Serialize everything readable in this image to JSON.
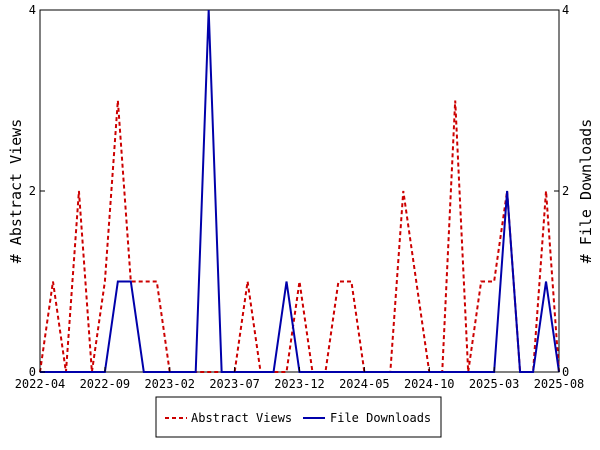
{
  "chart_data": {
    "type": "line",
    "ylabel_left": "# Abstract Views",
    "ylabel_right": "# File Downloads",
    "ylim_left": [
      0,
      4
    ],
    "ylim_right": [
      0,
      4
    ],
    "yticks_left": [
      "0",
      "2",
      "4"
    ],
    "yticks_right": [
      "0",
      "2",
      "4"
    ],
    "xticks": [
      {
        "label": "2022-04",
        "index": 0
      },
      {
        "label": "2022-09",
        "index": 5
      },
      {
        "label": "2023-02",
        "index": 10
      },
      {
        "label": "2023-07",
        "index": 15
      },
      {
        "label": "2023-12",
        "index": 20
      },
      {
        "label": "2024-05",
        "index": 25
      },
      {
        "label": "2024-10",
        "index": 30
      },
      {
        "label": "2025-03",
        "index": 35
      },
      {
        "label": "2025-08",
        "index": 40
      }
    ],
    "x": [
      "2022-04",
      "2022-05",
      "2022-06",
      "2022-07",
      "2022-08",
      "2022-09",
      "2022-10",
      "2022-11",
      "2022-12",
      "2023-01",
      "2023-02",
      "2023-03",
      "2023-04",
      "2023-05",
      "2023-06",
      "2023-07",
      "2023-08",
      "2023-09",
      "2023-10",
      "2023-11",
      "2023-12",
      "2024-01",
      "2024-02",
      "2024-03",
      "2024-04",
      "2024-05",
      "2024-06",
      "2024-07",
      "2024-08",
      "2024-09",
      "2024-10",
      "2024-11",
      "2024-12",
      "2025-01",
      "2025-02",
      "2025-03",
      "2025-04",
      "2025-05",
      "2025-06",
      "2025-07",
      "2025-08"
    ],
    "series": [
      {
        "name": "Abstract Views",
        "color": "#cc0000",
        "dash": "dashed",
        "axis": "left",
        "values": [
          0,
          1,
          0,
          2,
          0,
          1,
          3,
          1,
          1,
          1,
          0,
          0,
          0,
          0,
          0,
          0,
          1,
          0,
          0,
          0,
          1,
          0,
          0,
          1,
          1,
          0,
          0,
          0,
          2,
          1,
          0,
          0,
          3,
          0,
          1,
          1,
          2,
          0,
          0,
          2,
          0
        ]
      },
      {
        "name": "File Downloads",
        "color": "#0000aa",
        "dash": "solid",
        "axis": "right",
        "values": [
          0,
          0,
          0,
          0,
          0,
          0,
          1,
          1,
          0,
          0,
          0,
          0,
          0,
          4,
          0,
          0,
          0,
          0,
          0,
          1,
          0,
          0,
          0,
          0,
          0,
          0,
          0,
          0,
          0,
          0,
          0,
          0,
          0,
          0,
          0,
          0,
          2,
          0,
          0,
          1,
          0
        ]
      }
    ],
    "legend": {
      "placement": "bottom-center",
      "items": [
        "Abstract Views",
        "File Downloads"
      ]
    }
  }
}
